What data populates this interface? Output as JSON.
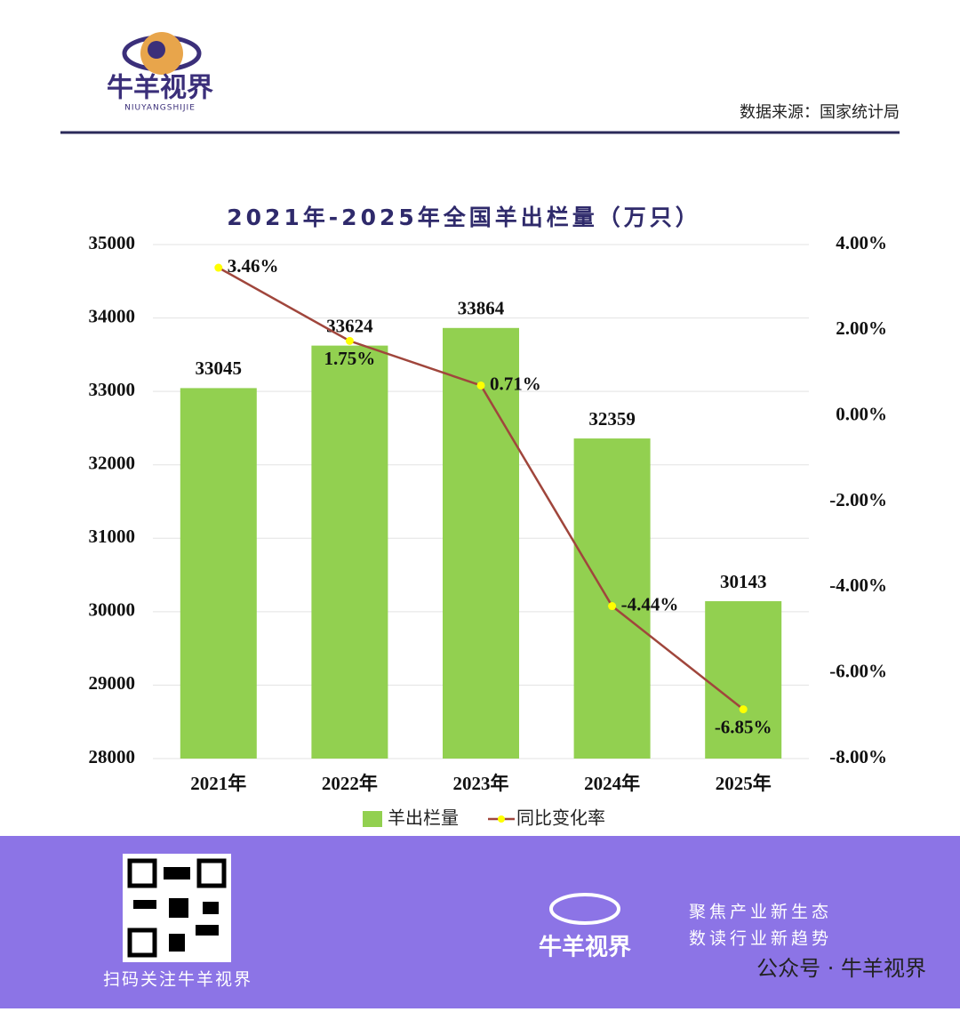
{
  "header": {
    "brand": "牛羊视界",
    "brand_sub": "NIUYANGSHIJIE",
    "source": "数据来源：国家统计局"
  },
  "chart_data": {
    "type": "bar",
    "title": "2021年-2025年全国羊出栏量（万只）",
    "categories": [
      "2021年",
      "2022年",
      "2023年",
      "2024年",
      "2025年"
    ],
    "series": [
      {
        "name": "羊出栏量",
        "type": "bar",
        "color": "#92d050",
        "values": [
          33045,
          33624,
          33864,
          32359,
          30143
        ]
      },
      {
        "name": "同比变化率",
        "type": "line",
        "axis": "y2",
        "color": "#a0463c",
        "marker_color": "#ffff00",
        "values": [
          3.46,
          1.75,
          0.71,
          -4.44,
          -6.85
        ],
        "value_labels": [
          "3.46%",
          "1.75%",
          "0.71%",
          "-4.44%",
          "-6.85%"
        ]
      }
    ],
    "ylim": [
      28000,
      35000
    ],
    "yticks": [
      28000,
      29000,
      30000,
      31000,
      32000,
      33000,
      34000,
      35000
    ],
    "y2lim": [
      -8,
      4
    ],
    "y2ticks": [
      {
        "value": -8,
        "label": "-8.00%"
      },
      {
        "value": -6,
        "label": "-6.00%"
      },
      {
        "value": -4,
        "label": "-4.00%"
      },
      {
        "value": -2,
        "label": "-2.00%"
      },
      {
        "value": 0,
        "label": "0.00%"
      },
      {
        "value": 2,
        "label": "2.00%"
      },
      {
        "value": 4,
        "label": "4.00%"
      }
    ],
    "grid": true,
    "legend": "bottom"
  },
  "footer": {
    "qr_caption": "扫码关注牛羊视界",
    "brand": "牛羊视界",
    "slogan1": "聚焦产业新生态",
    "slogan2": "数读行业新趋势",
    "account": "公众号 · 牛羊视界"
  }
}
